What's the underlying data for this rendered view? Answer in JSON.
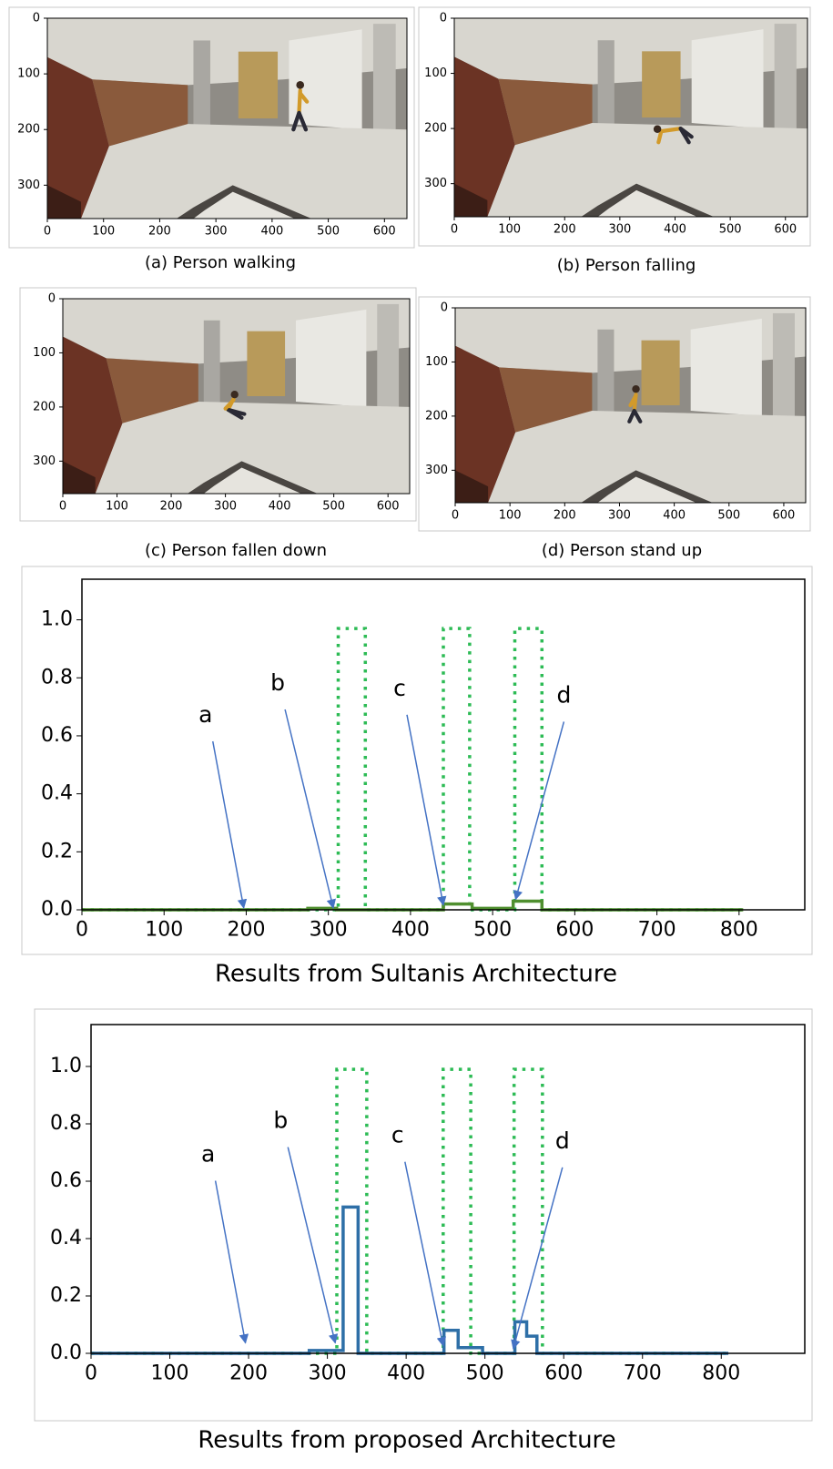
{
  "chart_data": [
    {
      "type": "image",
      "caption": "(a) Person walking",
      "xlim": [
        0,
        640
      ],
      "ylim": [
        360,
        0
      ],
      "xticks": [
        0,
        100,
        200,
        300,
        400,
        500,
        600
      ],
      "yticks": [
        0,
        100,
        200,
        300
      ]
    },
    {
      "type": "image",
      "caption": "(b) Person falling",
      "xlim": [
        0,
        640
      ],
      "ylim": [
        360,
        0
      ],
      "xticks": [
        0,
        100,
        200,
        300,
        400,
        500,
        600
      ],
      "yticks": [
        0,
        100,
        200,
        300
      ]
    },
    {
      "type": "image",
      "caption": "(c) Person fallen down",
      "xlim": [
        0,
        640
      ],
      "ylim": [
        360,
        0
      ],
      "xticks": [
        0,
        100,
        200,
        300,
        400,
        500,
        600
      ],
      "yticks": [
        0,
        100,
        200,
        300
      ]
    },
    {
      "type": "image",
      "caption": "(d) Person stand up",
      "xlim": [
        0,
        640
      ],
      "ylim": [
        360,
        0
      ],
      "xticks": [
        0,
        100,
        200,
        300,
        400,
        500,
        600
      ],
      "yticks": [
        0,
        100,
        200,
        300
      ]
    },
    {
      "type": "line",
      "caption": "Results from Sultanis Architecture",
      "xlim": [
        0,
        880
      ],
      "ylim": [
        0,
        1.14
      ],
      "xticks": [
        0,
        100,
        200,
        300,
        400,
        500,
        600,
        700,
        800
      ],
      "yticks": [
        {
          "value": 0,
          "label": "0.0"
        },
        0.2,
        0.4,
        0.6,
        0.8,
        {
          "value": 1,
          "label": "1.0"
        }
      ],
      "series": [
        {
          "color": "#2dbb55",
          "style": "dotted",
          "x": [
            0,
            312,
            312,
            345,
            345,
            440,
            440,
            472,
            472,
            527,
            527,
            560,
            560,
            805
          ],
          "values": [
            0,
            0,
            0.97,
            0.97,
            0,
            0,
            0.97,
            0.97,
            0,
            0,
            0.97,
            0.97,
            0,
            0
          ]
        },
        {
          "color": "#4f8f2f",
          "style": "solid",
          "x": [
            0,
            275,
            275,
            310,
            310,
            440,
            440,
            475,
            475,
            525,
            525,
            560,
            560,
            805
          ],
          "values": [
            0,
            0,
            0.005,
            0.005,
            0,
            0,
            0.02,
            0.02,
            0.005,
            0.005,
            0.03,
            0.03,
            0,
            0
          ]
        }
      ],
      "annotations": [
        {
          "text": "a",
          "x": 197,
          "y": 0
        },
        {
          "text": "b",
          "x": 306,
          "y": 0
        },
        {
          "text": "c",
          "x": 440,
          "y": 0.01
        },
        {
          "text": "d",
          "x": 528,
          "y": 0.03
        }
      ]
    },
    {
      "type": "line",
      "caption": "Results from proposed Architecture",
      "xlim": [
        0,
        906
      ],
      "ylim": [
        0,
        1.146
      ],
      "xticks": [
        0,
        100,
        200,
        300,
        400,
        500,
        600,
        700,
        800
      ],
      "yticks": [
        {
          "value": 0,
          "label": "0.0"
        },
        0.2,
        0.4,
        0.6,
        0.8,
        {
          "value": 1,
          "label": "1.0"
        }
      ],
      "series": [
        {
          "color": "#2dbb55",
          "style": "dotted",
          "x": [
            0,
            312,
            312,
            350,
            350,
            447,
            447,
            482,
            482,
            537,
            537,
            573,
            573,
            809
          ],
          "values": [
            0,
            0,
            0.99,
            0.99,
            0,
            0,
            0.99,
            0.99,
            0,
            0,
            0.99,
            0.99,
            0,
            0
          ]
        },
        {
          "color": "#2e6fa7",
          "style": "solid",
          "x": [
            0,
            277,
            277,
            320,
            320,
            339,
            339,
            448,
            448,
            466,
            466,
            497,
            497,
            538,
            538,
            553,
            553,
            566,
            566,
            809
          ],
          "values": [
            0,
            0,
            0.01,
            0.01,
            0.51,
            0.51,
            0,
            0,
            0.08,
            0.08,
            0.02,
            0.02,
            0,
            0,
            0.11,
            0.11,
            0.06,
            0.06,
            0,
            0
          ]
        }
      ],
      "annotations": [
        {
          "text": "a",
          "x": 196,
          "y": 0.03
        },
        {
          "text": "b",
          "x": 310,
          "y": 0.03
        },
        {
          "text": "c",
          "x": 447,
          "y": 0.02
        },
        {
          "text": "d",
          "x": 536,
          "y": 0.01
        }
      ]
    }
  ]
}
